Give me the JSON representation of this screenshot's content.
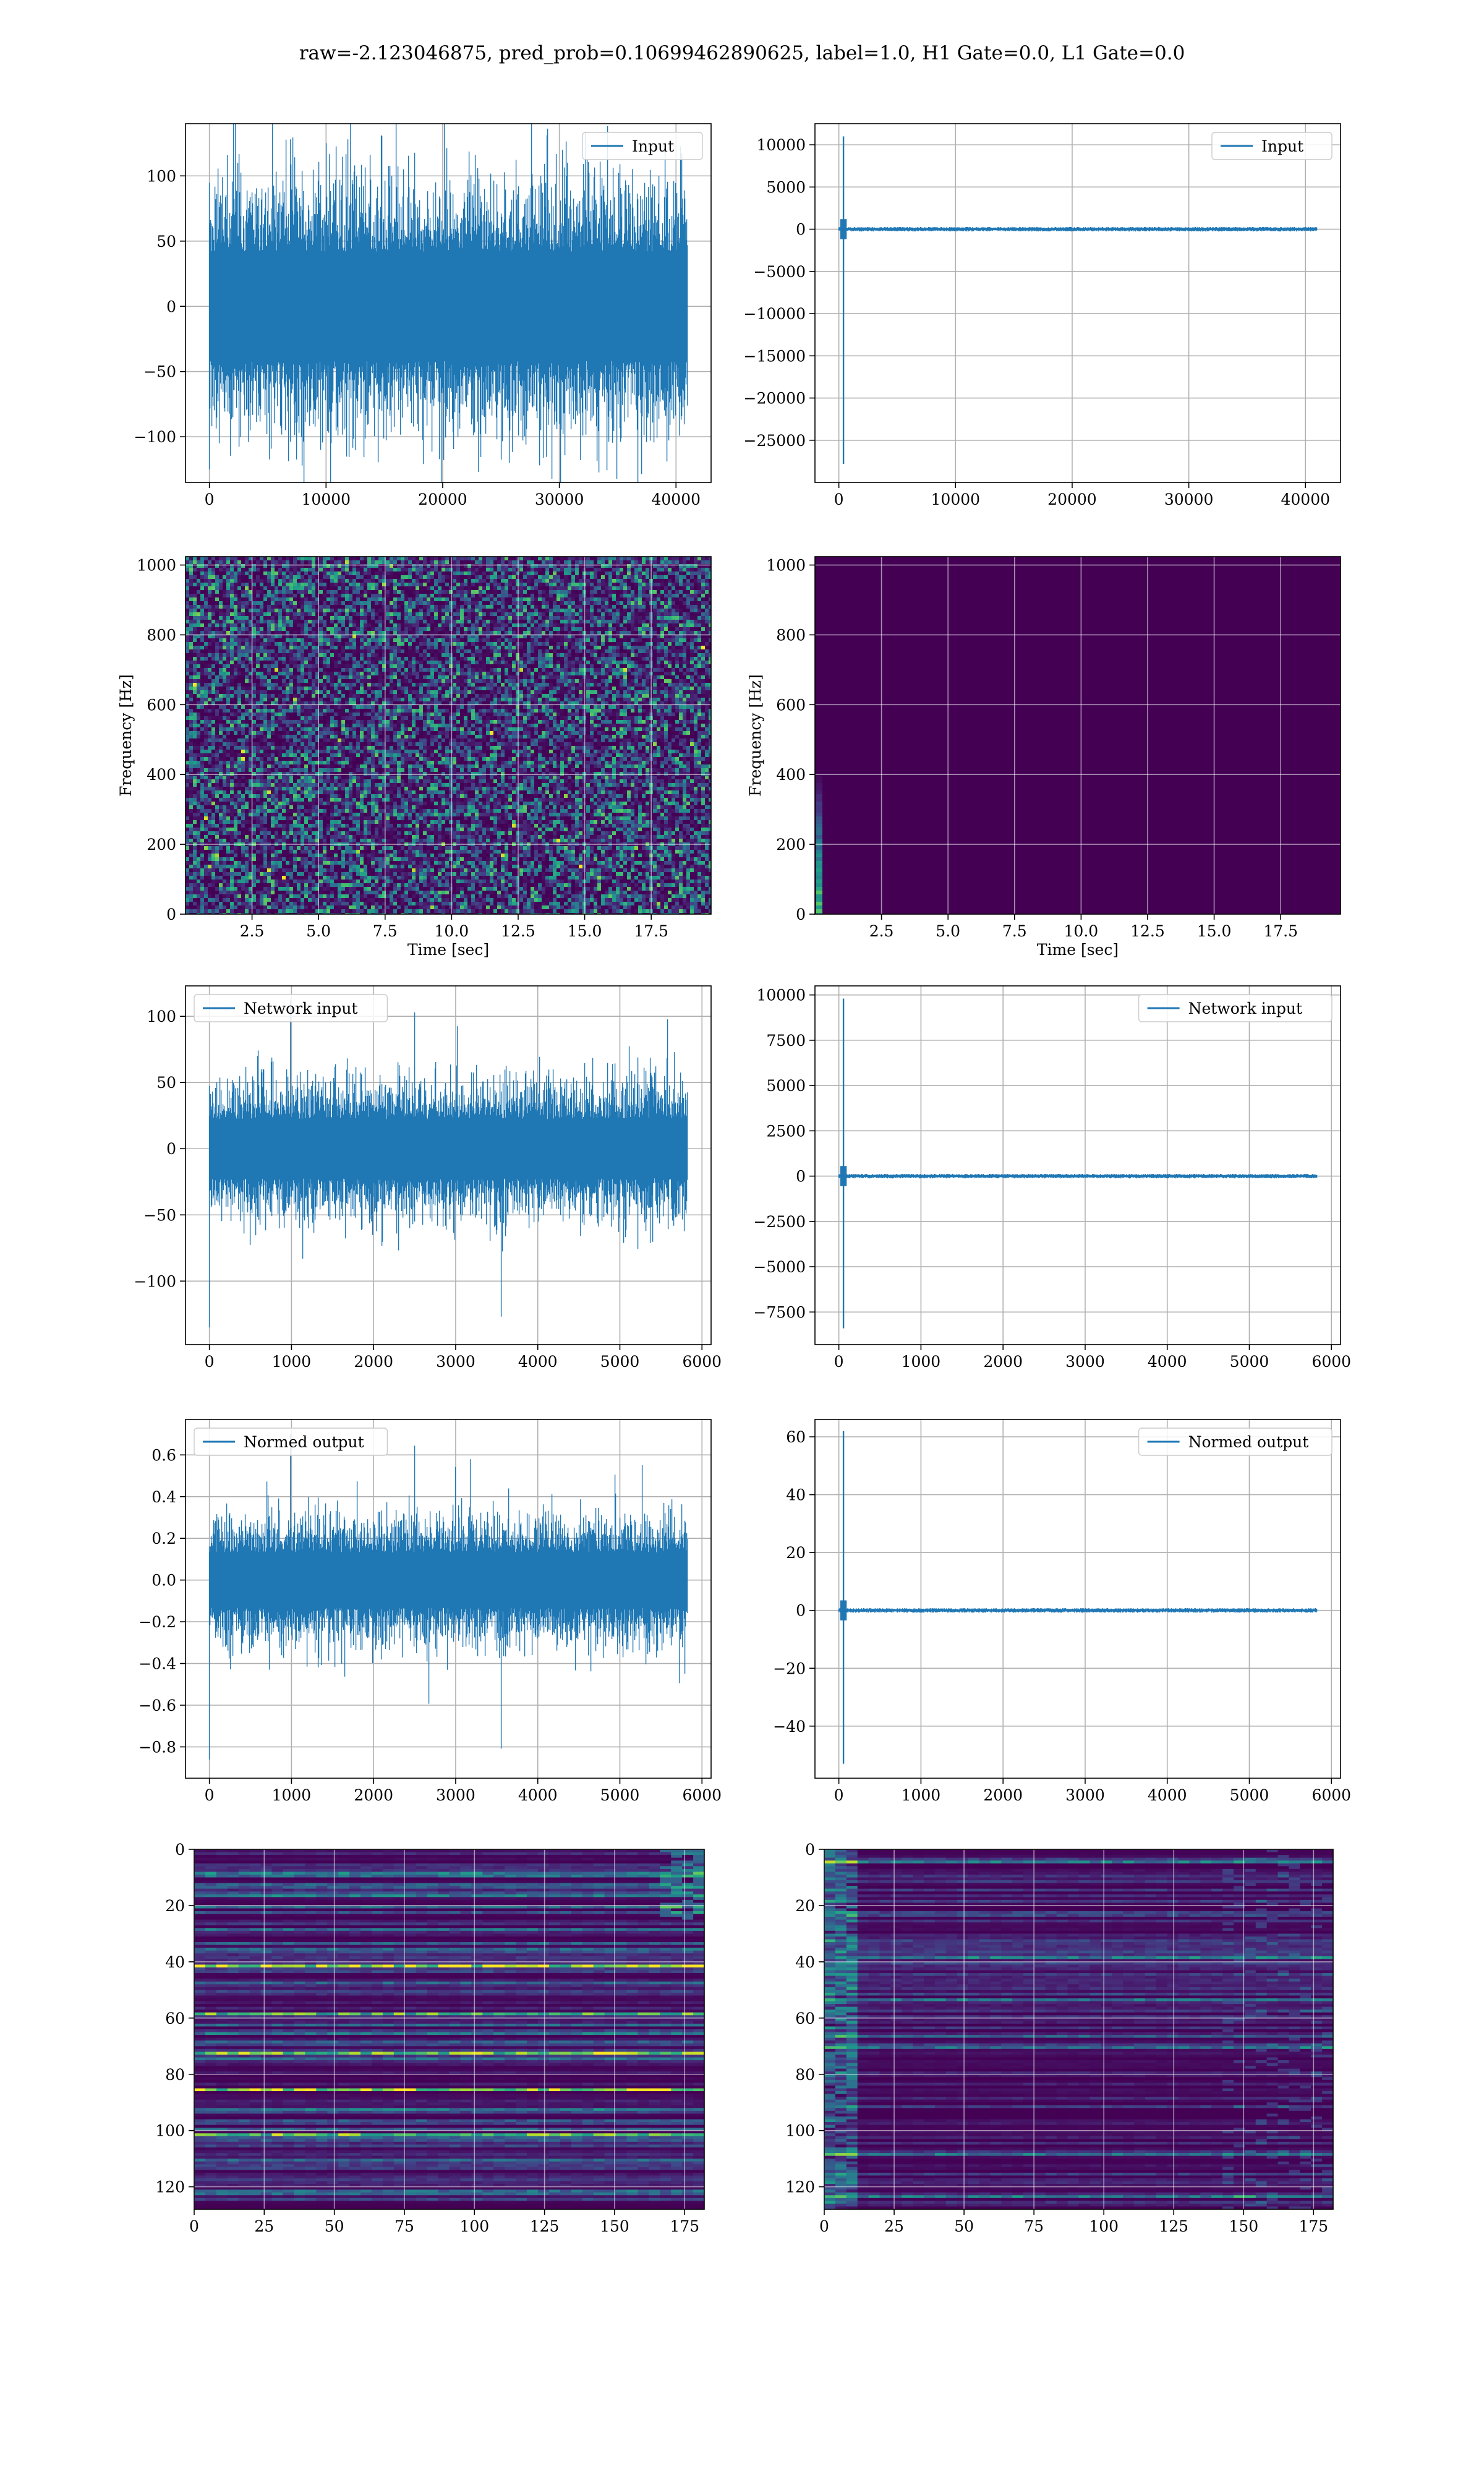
{
  "figure": {
    "title": "raw=-2.123046875, pred_prob=0.10699462890625, label=1.0, H1 Gate=0.0, L1 Gate=0.0"
  },
  "colors": {
    "line": "#1f77b4",
    "grid": "#b0b0b0",
    "viridis": [
      "#440154",
      "#482878",
      "#3e4a89",
      "#31688e",
      "#26828e",
      "#1f9e89",
      "#35b779",
      "#6ece58",
      "#b5de2b",
      "#fde725"
    ]
  },
  "chart_data": [
    {
      "id": "h1-input",
      "type": "line",
      "series": [
        {
          "name": "Input",
          "kind": "noise",
          "n": 40960,
          "amplitude": 60,
          "extremes": [
            128,
            -125
          ]
        }
      ],
      "legend": "top-right",
      "xlim": [
        -2048,
        43008
      ],
      "ylim": [
        -135,
        140
      ],
      "xticks": [
        0,
        10000,
        20000,
        30000,
        40000
      ],
      "yticks": [
        -100,
        -50,
        0,
        50,
        100
      ],
      "xlabel": "",
      "ylabel": "",
      "grid": true
    },
    {
      "id": "l1-input",
      "type": "line",
      "series": [
        {
          "name": "Input",
          "kind": "glitch",
          "n": 40960,
          "glitch_at": 400,
          "glitch_max": 11000,
          "glitch_min": -27800
        }
      ],
      "legend": "top-right",
      "xlim": [
        -2048,
        43008
      ],
      "ylim": [
        -30000,
        12500
      ],
      "xticks": [
        0,
        10000,
        20000,
        30000,
        40000
      ],
      "yticks": [
        -25000,
        -20000,
        -15000,
        -10000,
        -5000,
        0,
        5000,
        10000
      ],
      "xlabel": "",
      "ylabel": "",
      "grid": true
    },
    {
      "id": "h1-spectrogram",
      "type": "heatmap",
      "pattern": "noise",
      "xlim": [
        0,
        19.75
      ],
      "ylim": [
        0,
        1024
      ],
      "xticks": [
        2.5,
        5.0,
        7.5,
        10.0,
        12.5,
        15.0,
        17.5
      ],
      "yticks": [
        0,
        200,
        400,
        600,
        800,
        1000
      ],
      "xlabel": "Time [sec]",
      "ylabel": "Frequency [Hz]",
      "grid": true
    },
    {
      "id": "l1-spectrogram",
      "type": "heatmap",
      "pattern": "glitch",
      "xlim": [
        0,
        19.75
      ],
      "ylim": [
        0,
        1024
      ],
      "xticks": [
        2.5,
        5.0,
        7.5,
        10.0,
        12.5,
        15.0,
        17.5
      ],
      "yticks": [
        0,
        200,
        400,
        600,
        800,
        1000
      ],
      "xlabel": "Time [sec]",
      "ylabel": "Frequency [Hz]",
      "grid": true
    },
    {
      "id": "h1-network-input",
      "type": "line",
      "series": [
        {
          "name": "Network input",
          "kind": "noise",
          "n": 5820,
          "amplitude": 32,
          "extremes": [
            112,
            -135
          ]
        }
      ],
      "legend": "top-left",
      "xlim": [
        -291,
        6111
      ],
      "ylim": [
        -148,
        123
      ],
      "xticks": [
        0,
        1000,
        2000,
        3000,
        4000,
        5000,
        6000
      ],
      "yticks": [
        -100,
        -50,
        0,
        50,
        100
      ],
      "xlabel": "",
      "ylabel": "",
      "grid": true
    },
    {
      "id": "l1-network-input",
      "type": "line",
      "series": [
        {
          "name": "Network input",
          "kind": "glitch",
          "n": 5820,
          "glitch_at": 55,
          "glitch_max": 9800,
          "glitch_min": -8400
        }
      ],
      "legend": "top-right",
      "xlim": [
        -291,
        6111
      ],
      "ylim": [
        -9300,
        10500
      ],
      "xticks": [
        0,
        1000,
        2000,
        3000,
        4000,
        5000,
        6000
      ],
      "yticks": [
        -7500,
        -5000,
        -2500,
        0,
        2500,
        5000,
        7500,
        10000
      ],
      "xlabel": "",
      "ylabel": "",
      "grid": true
    },
    {
      "id": "h1-normed-output",
      "type": "line",
      "series": [
        {
          "name": "Normed output",
          "kind": "noise",
          "n": 5820,
          "amplitude": 0.19,
          "extremes": [
            0.7,
            -0.86
          ]
        }
      ],
      "legend": "top-left",
      "xlim": [
        -291,
        6111
      ],
      "ylim": [
        -0.95,
        0.77
      ],
      "xticks": [
        0,
        1000,
        2000,
        3000,
        4000,
        5000,
        6000
      ],
      "yticks": [
        -0.8,
        -0.6,
        -0.4,
        -0.2,
        0.0,
        0.2,
        0.4,
        0.6
      ],
      "xlabel": "",
      "ylabel": "",
      "grid": true
    },
    {
      "id": "l1-normed-output",
      "type": "line",
      "series": [
        {
          "name": "Normed output",
          "kind": "glitch",
          "n": 5820,
          "glitch_at": 55,
          "glitch_max": 62,
          "glitch_min": -53
        }
      ],
      "legend": "top-right",
      "xlim": [
        -291,
        6111
      ],
      "ylim": [
        -58,
        66
      ],
      "xticks": [
        0,
        1000,
        2000,
        3000,
        4000,
        5000,
        6000
      ],
      "yticks": [
        -40,
        -20,
        0,
        20,
        40,
        60
      ],
      "xlabel": "",
      "ylabel": "",
      "grid": true
    },
    {
      "id": "h1-feature-map",
      "type": "heatmap",
      "pattern": "bands",
      "xlim": [
        0,
        182
      ],
      "ylim": [
        128,
        0
      ],
      "xticks": [
        0,
        25,
        50,
        75,
        100,
        125,
        150,
        175
      ],
      "yticks": [
        0,
        20,
        40,
        60,
        80,
        100,
        120
      ],
      "xlabel": "",
      "ylabel": "",
      "grid": true
    },
    {
      "id": "l1-feature-map",
      "type": "heatmap",
      "pattern": "bands-dim",
      "xlim": [
        0,
        182
      ],
      "ylim": [
        128,
        0
      ],
      "xticks": [
        0,
        25,
        50,
        75,
        100,
        125,
        150,
        175
      ],
      "yticks": [
        0,
        20,
        40,
        60,
        80,
        100,
        120
      ],
      "xlabel": "",
      "ylabel": "",
      "grid": true
    }
  ]
}
